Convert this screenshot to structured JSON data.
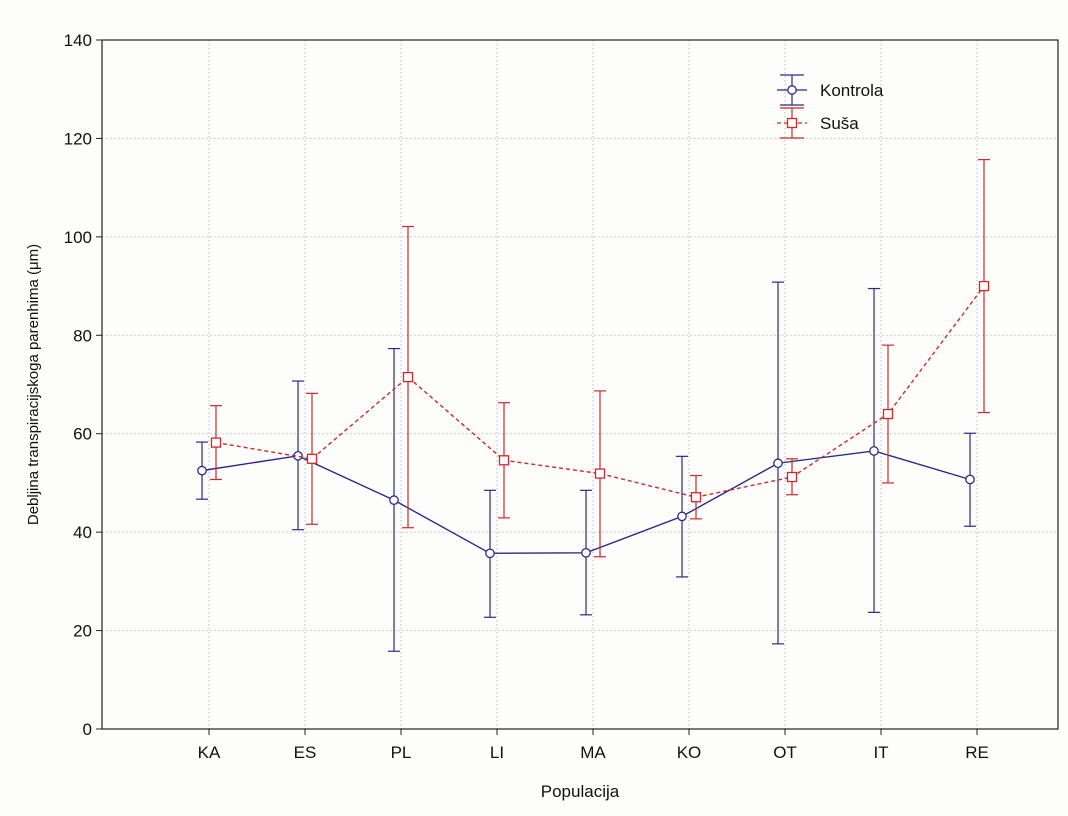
{
  "chart_data": {
    "type": "line",
    "title": "",
    "xlabel": "Populacija",
    "ylabel": "Debljina transpiracijskoga parenhima (μm)",
    "categories": [
      "KA",
      "ES",
      "PL",
      "LI",
      "MA",
      "KO",
      "OT",
      "IT",
      "RE"
    ],
    "ylim": [
      0,
      140
    ],
    "yticks": [
      0,
      20,
      40,
      60,
      80,
      100,
      120,
      140
    ],
    "grid": true,
    "legend_position": "top-right",
    "series": [
      {
        "name": "Kontrola",
        "color": "#2a2a8a",
        "line_style": "solid",
        "marker": "circle",
        "values": [
          52.5,
          55.5,
          46.5,
          35.7,
          35.8,
          43.2,
          54.0,
          56.5,
          50.7
        ],
        "lower": [
          46.7,
          40.5,
          15.8,
          22.7,
          23.2,
          30.9,
          17.3,
          23.7,
          41.2
        ],
        "upper": [
          58.3,
          70.7,
          77.3,
          48.5,
          48.5,
          55.4,
          90.8,
          89.5,
          60.1
        ]
      },
      {
        "name": "Suša",
        "color": "#cc2a2a",
        "line_style": "dashed",
        "marker": "square",
        "values": [
          58.2,
          54.9,
          71.5,
          54.6,
          51.9,
          47.1,
          51.2,
          64.0,
          90.0
        ],
        "lower": [
          50.7,
          41.6,
          40.9,
          42.9,
          35.0,
          42.7,
          47.6,
          50.0,
          64.3
        ],
        "upper": [
          65.7,
          68.2,
          102.1,
          66.3,
          68.7,
          51.5,
          54.9,
          78.0,
          115.7
        ]
      }
    ]
  }
}
